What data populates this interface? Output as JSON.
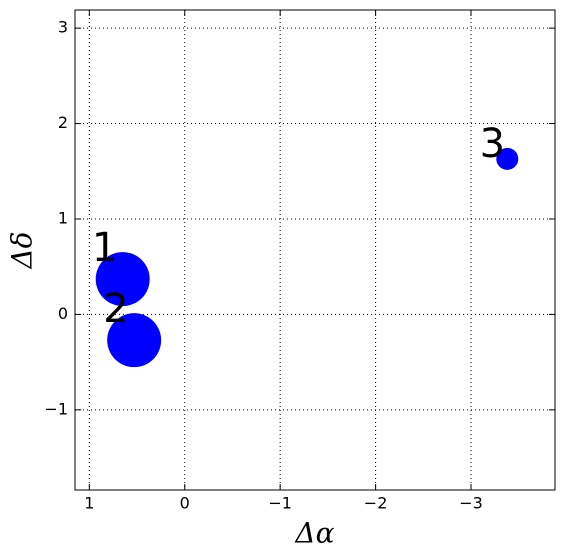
{
  "chart_data": {
    "type": "scatter",
    "xlabel": "Δα",
    "ylabel": "Δδ",
    "series": [
      {
        "color": "#0000ff",
        "x": [
          0.65,
          0.53,
          -3.38
        ],
        "values": [
          0.37,
          -0.27,
          1.63
        ],
        "sizes": [
          27,
          27,
          11
        ],
        "labels": [
          "1",
          "2",
          "3"
        ]
      }
    ],
    "xlim": [
      1.15,
      -3.88
    ],
    "ylim": [
      -1.84,
      3.19
    ],
    "xticks": [
      1,
      0,
      {
        "value": -1,
        "label": "−1"
      },
      {
        "value": -2,
        "label": "−2"
      },
      {
        "value": -3,
        "label": "−3"
      }
    ],
    "yticks": [
      {
        "value": -1,
        "label": "−1"
      },
      0,
      1,
      2,
      3
    ],
    "grid": true
  }
}
